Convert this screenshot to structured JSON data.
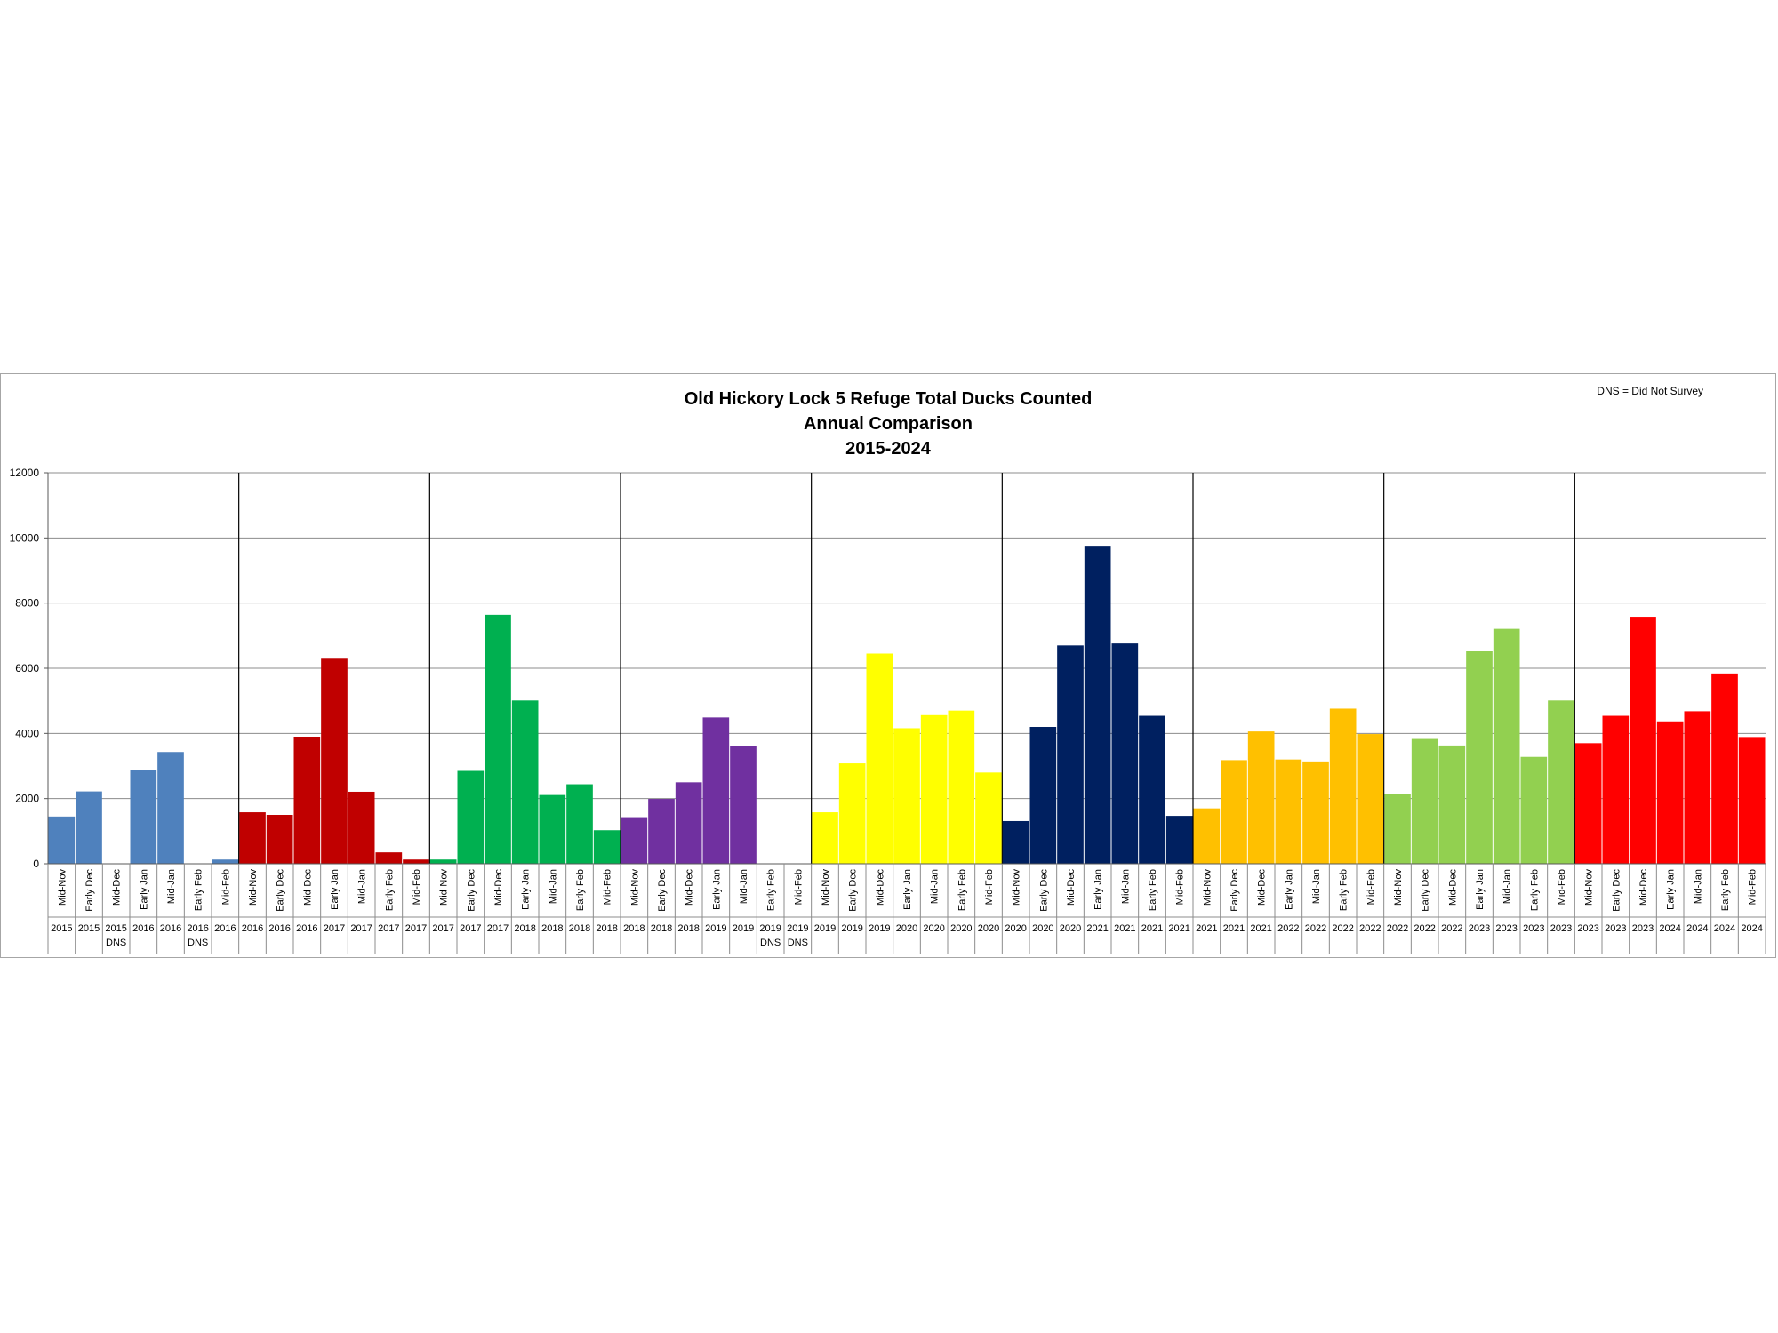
{
  "chart_data": {
    "type": "bar",
    "title_lines": [
      "Old Hickory Lock 5 Refuge Total Ducks Counted",
      "Annual Comparison",
      "2015-2024"
    ],
    "note": "DNS = Did Not Survey",
    "ylim": [
      0,
      12000
    ],
    "yticks": [
      "0",
      "2000",
      "4000",
      "6000",
      "8000",
      "10000",
      "12000"
    ],
    "grid": true,
    "legend": "none",
    "seasons": [
      {
        "color": "#4f81bd",
        "bars": [
          {
            "survey": "Mid-Nov",
            "year": "2015",
            "value": 1450
          },
          {
            "survey": "Early Dec",
            "year": "2015",
            "value": 2220
          },
          {
            "survey": "Mid-Dec",
            "year": "2015",
            "value": 0,
            "dns": "DNS"
          },
          {
            "survey": "Early Jan",
            "year": "2016",
            "value": 2870
          },
          {
            "survey": "Mid-Jan",
            "year": "2016",
            "value": 3430
          },
          {
            "survey": "Early Feb",
            "year": "2016",
            "value": 0,
            "dns": "DNS"
          },
          {
            "survey": "Mid-Feb",
            "year": "2016",
            "value": 130
          }
        ]
      },
      {
        "color": "#c00000",
        "bars": [
          {
            "survey": "Mid-Nov",
            "year": "2016",
            "value": 1580
          },
          {
            "survey": "Early Dec",
            "year": "2016",
            "value": 1500
          },
          {
            "survey": "Mid-Dec",
            "year": "2016",
            "value": 3900
          },
          {
            "survey": "Early Jan",
            "year": "2017",
            "value": 6320
          },
          {
            "survey": "Mid-Jan",
            "year": "2017",
            "value": 2210
          },
          {
            "survey": "Early Feb",
            "year": "2017",
            "value": 350
          },
          {
            "survey": "Mid-Feb",
            "year": "2017",
            "value": 130
          }
        ]
      },
      {
        "color": "#00b050",
        "bars": [
          {
            "survey": "Mid-Nov",
            "year": "2017",
            "value": 130
          },
          {
            "survey": "Early Dec",
            "year": "2017",
            "value": 2850
          },
          {
            "survey": "Mid-Dec",
            "year": "2017",
            "value": 7640
          },
          {
            "survey": "Early Jan",
            "year": "2018",
            "value": 5010
          },
          {
            "survey": "Mid-Jan",
            "year": "2018",
            "value": 2110
          },
          {
            "survey": "Early Feb",
            "year": "2018",
            "value": 2440
          },
          {
            "survey": "Mid-Feb",
            "year": "2018",
            "value": 1030
          }
        ]
      },
      {
        "color": "#7030a0",
        "bars": [
          {
            "survey": "Mid-Nov",
            "year": "2018",
            "value": 1430
          },
          {
            "survey": "Early Dec",
            "year": "2018",
            "value": 1990
          },
          {
            "survey": "Mid-Dec",
            "year": "2018",
            "value": 2500
          },
          {
            "survey": "Early Jan",
            "year": "2019",
            "value": 4490
          },
          {
            "survey": "Mid-Jan",
            "year": "2019",
            "value": 3600
          },
          {
            "survey": "Early Feb",
            "year": "2019",
            "value": 0,
            "dns": "DNS"
          },
          {
            "survey": "Mid-Feb",
            "year": "2019",
            "value": 0,
            "dns": "DNS"
          }
        ]
      },
      {
        "color": "#ffff00",
        "bars": [
          {
            "survey": "Mid-Nov",
            "year": "2019",
            "value": 1580
          },
          {
            "survey": "Early Dec",
            "year": "2019",
            "value": 3080
          },
          {
            "survey": "Mid-Dec",
            "year": "2019",
            "value": 6450
          },
          {
            "survey": "Early Jan",
            "year": "2020",
            "value": 4160
          },
          {
            "survey": "Mid-Jan",
            "year": "2020",
            "value": 4560
          },
          {
            "survey": "Early Feb",
            "year": "2020",
            "value": 4700
          },
          {
            "survey": "Mid-Feb",
            "year": "2020",
            "value": 2800
          }
        ]
      },
      {
        "color": "#002060",
        "bars": [
          {
            "survey": "Mid-Nov",
            "year": "2020",
            "value": 1310
          },
          {
            "survey": "Early Dec",
            "year": "2020",
            "value": 4200
          },
          {
            "survey": "Mid-Dec",
            "year": "2020",
            "value": 6700
          },
          {
            "survey": "Early Jan",
            "year": "2021",
            "value": 9760
          },
          {
            "survey": "Mid-Jan",
            "year": "2021",
            "value": 6760
          },
          {
            "survey": "Early Feb",
            "year": "2021",
            "value": 4540
          },
          {
            "survey": "Mid-Feb",
            "year": "2021",
            "value": 1470
          }
        ]
      },
      {
        "color": "#ffc000",
        "bars": [
          {
            "survey": "Mid-Nov",
            "year": "2021",
            "value": 1700
          },
          {
            "survey": "Early Dec",
            "year": "2021",
            "value": 3180
          },
          {
            "survey": "Mid-Dec",
            "year": "2021",
            "value": 4060
          },
          {
            "survey": "Early Jan",
            "year": "2022",
            "value": 3200
          },
          {
            "survey": "Mid-Jan",
            "year": "2022",
            "value": 3140
          },
          {
            "survey": "Early Feb",
            "year": "2022",
            "value": 4760
          },
          {
            "survey": "Mid-Feb",
            "year": "2022",
            "value": 3980
          }
        ]
      },
      {
        "color": "#92d050",
        "bars": [
          {
            "survey": "Mid-Nov",
            "year": "2022",
            "value": 2140
          },
          {
            "survey": "Early Dec",
            "year": "2022",
            "value": 3830
          },
          {
            "survey": "Mid-Dec",
            "year": "2022",
            "value": 3630
          },
          {
            "survey": "Early Jan",
            "year": "2023",
            "value": 6520
          },
          {
            "survey": "Mid-Jan",
            "year": "2023",
            "value": 7210
          },
          {
            "survey": "Early Feb",
            "year": "2023",
            "value": 3280
          },
          {
            "survey": "Mid-Feb",
            "year": "2023",
            "value": 5010
          }
        ]
      },
      {
        "color": "#ff0000",
        "bars": [
          {
            "survey": "Mid-Nov",
            "year": "2023",
            "value": 3700
          },
          {
            "survey": "Early Dec",
            "year": "2023",
            "value": 4540
          },
          {
            "survey": "Mid-Dec",
            "year": "2023",
            "value": 7580
          },
          {
            "survey": "Early Jan",
            "year": "2024",
            "value": 4370
          },
          {
            "survey": "Mid-Jan",
            "year": "2024",
            "value": 4680
          },
          {
            "survey": "Early Feb",
            "year": "2024",
            "value": 5840
          },
          {
            "survey": "Mid-Feb",
            "year": "2024",
            "value": 3890
          }
        ]
      }
    ]
  }
}
